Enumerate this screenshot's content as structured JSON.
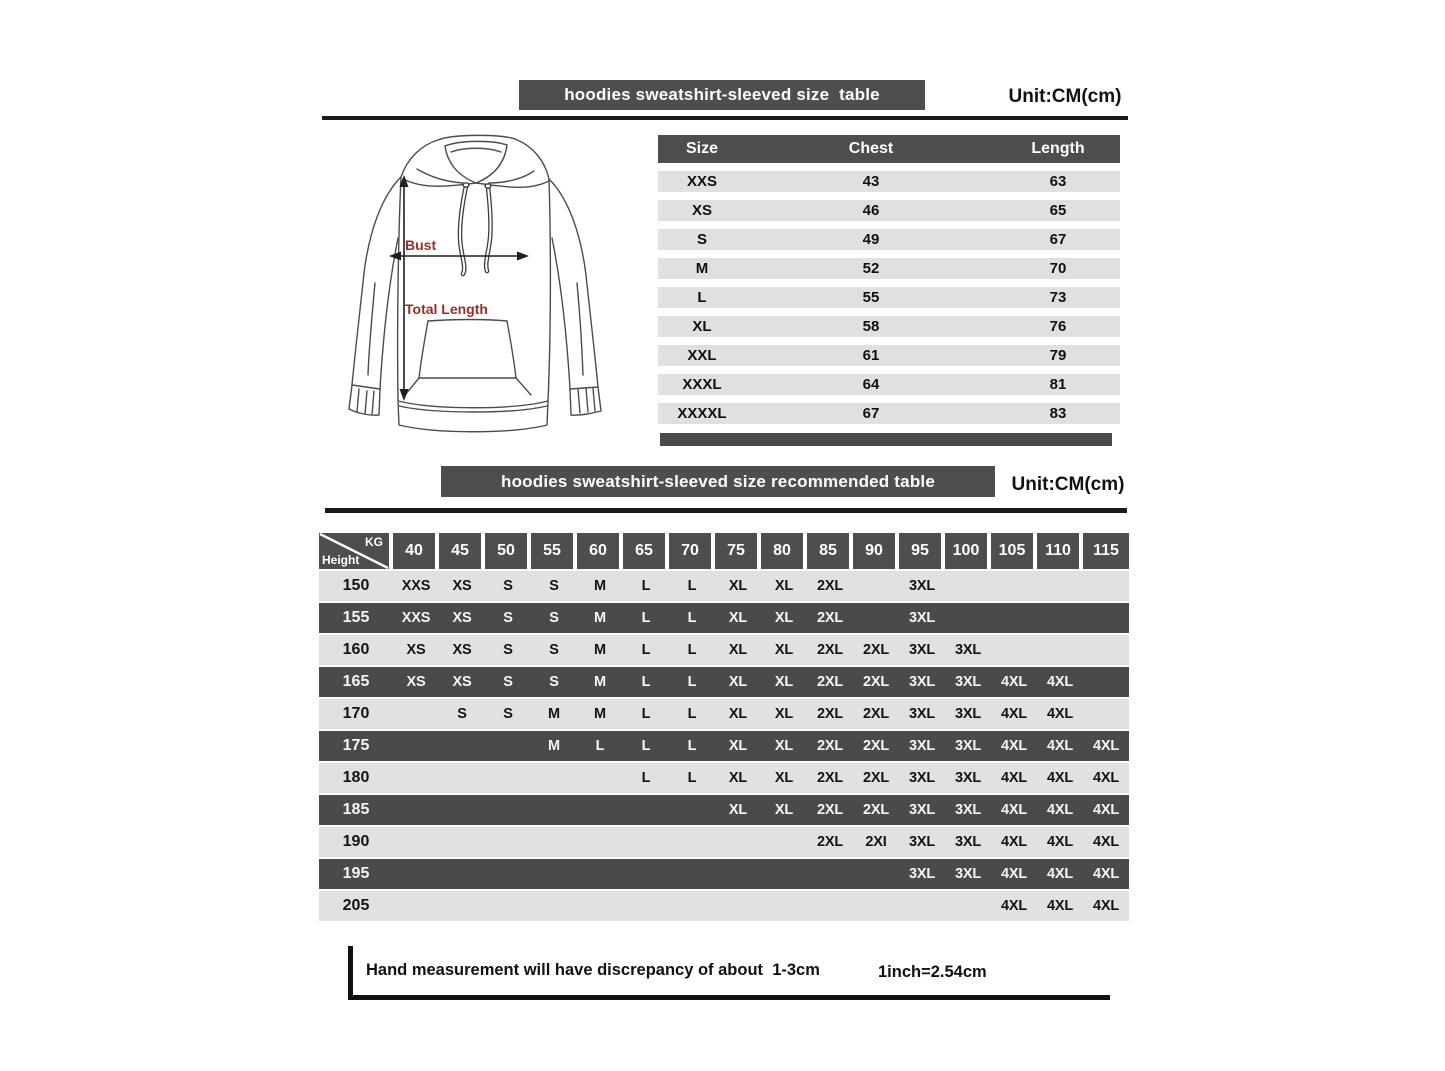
{
  "colors": {
    "bar_dark": "#4e4e50",
    "row_light": "#e1e1e1",
    "row_dark": "#4a4a4c",
    "accent_red": "#9b2d26",
    "rule": "#1b1b1b"
  },
  "section_size": {
    "title": "hoodies sweatshirt-sleeved size  table",
    "unit": "Unit:CM(cm)",
    "diagram": {
      "bust": "Bust",
      "total_length": "Total Length"
    },
    "columns": [
      "Size",
      "Chest",
      "Length"
    ],
    "rows": [
      {
        "size": "XXS",
        "chest": "43",
        "length": "63"
      },
      {
        "size": "XS",
        "chest": "46",
        "length": "65"
      },
      {
        "size": "S",
        "chest": "49",
        "length": "67"
      },
      {
        "size": "M",
        "chest": "52",
        "length": "70"
      },
      {
        "size": "L",
        "chest": "55",
        "length": "73"
      },
      {
        "size": "XL",
        "chest": "58",
        "length": "76"
      },
      {
        "size": "XXL",
        "chest": "61",
        "length": "79"
      },
      {
        "size": "XXXL",
        "chest": "64",
        "length": "81"
      },
      {
        "size": "XXXXL",
        "chest": "67",
        "length": "83"
      }
    ]
  },
  "section_recommended": {
    "title": "hoodies sweatshirt-sleeved size recommended table",
    "unit": "Unit:CM(cm)",
    "corner": {
      "kg": "KG",
      "height": "Height"
    },
    "weights": [
      "40",
      "45",
      "50",
      "55",
      "60",
      "65",
      "70",
      "75",
      "80",
      "85",
      "90",
      "95",
      "100",
      "105",
      "110",
      "115"
    ],
    "rows": [
      {
        "height": "150",
        "cells": [
          "XXS",
          "XS",
          "S",
          "S",
          "M",
          "L",
          "L",
          "XL",
          "XL",
          "2XL",
          "",
          "3XL",
          "",
          "",
          "",
          ""
        ]
      },
      {
        "height": "155",
        "cells": [
          "XXS",
          "XS",
          "S",
          "S",
          "M",
          "L",
          "L",
          "XL",
          "XL",
          "2XL",
          "",
          "3XL",
          "",
          "",
          "",
          ""
        ]
      },
      {
        "height": "160",
        "cells": [
          "XS",
          "XS",
          "S",
          "S",
          "M",
          "L",
          "L",
          "XL",
          "XL",
          "2XL",
          "2XL",
          "3XL",
          "3XL",
          "",
          "",
          ""
        ]
      },
      {
        "height": "165",
        "cells": [
          "XS",
          "XS",
          "S",
          "S",
          "M",
          "L",
          "L",
          "XL",
          "XL",
          "2XL",
          "2XL",
          "3XL",
          "3XL",
          "4XL",
          "4XL",
          ""
        ]
      },
      {
        "height": "170",
        "cells": [
          "",
          "S",
          "S",
          "M",
          "M",
          "L",
          "L",
          "XL",
          "XL",
          "2XL",
          "2XL",
          "3XL",
          "3XL",
          "4XL",
          "4XL",
          ""
        ]
      },
      {
        "height": "175",
        "cells": [
          "",
          "",
          "",
          "M",
          "L",
          "L",
          "L",
          "XL",
          "XL",
          "2XL",
          "2XL",
          "3XL",
          "3XL",
          "4XL",
          "4XL",
          "4XL"
        ]
      },
      {
        "height": "180",
        "cells": [
          "",
          "",
          "",
          "",
          "",
          "L",
          "L",
          "XL",
          "XL",
          "2XL",
          "2XL",
          "3XL",
          "3XL",
          "4XL",
          "4XL",
          "4XL"
        ]
      },
      {
        "height": "185",
        "cells": [
          "",
          "",
          "",
          "",
          "",
          "",
          "",
          "XL",
          "XL",
          "2XL",
          "2XL",
          "3XL",
          "3XL",
          "4XL",
          "4XL",
          "4XL"
        ]
      },
      {
        "height": "190",
        "cells": [
          "",
          "",
          "",
          "",
          "",
          "",
          "",
          "",
          "",
          "2XL",
          "2XI",
          "3XL",
          "3XL",
          "4XL",
          "4XL",
          "4XL"
        ]
      },
      {
        "height": "195",
        "cells": [
          "",
          "",
          "",
          "",
          "",
          "",
          "",
          "",
          "",
          "",
          "",
          "3XL",
          "3XL",
          "4XL",
          "4XL",
          "4XL"
        ]
      },
      {
        "height": "205",
        "cells": [
          "",
          "",
          "",
          "",
          "",
          "",
          "",
          "",
          "",
          "",
          "",
          "",
          "",
          "4XL",
          "4XL",
          "4XL"
        ]
      }
    ]
  },
  "footer": {
    "note": "Hand measurement will have discrepancy of about  1-3cm",
    "conversion": "1inch=2.54cm"
  }
}
